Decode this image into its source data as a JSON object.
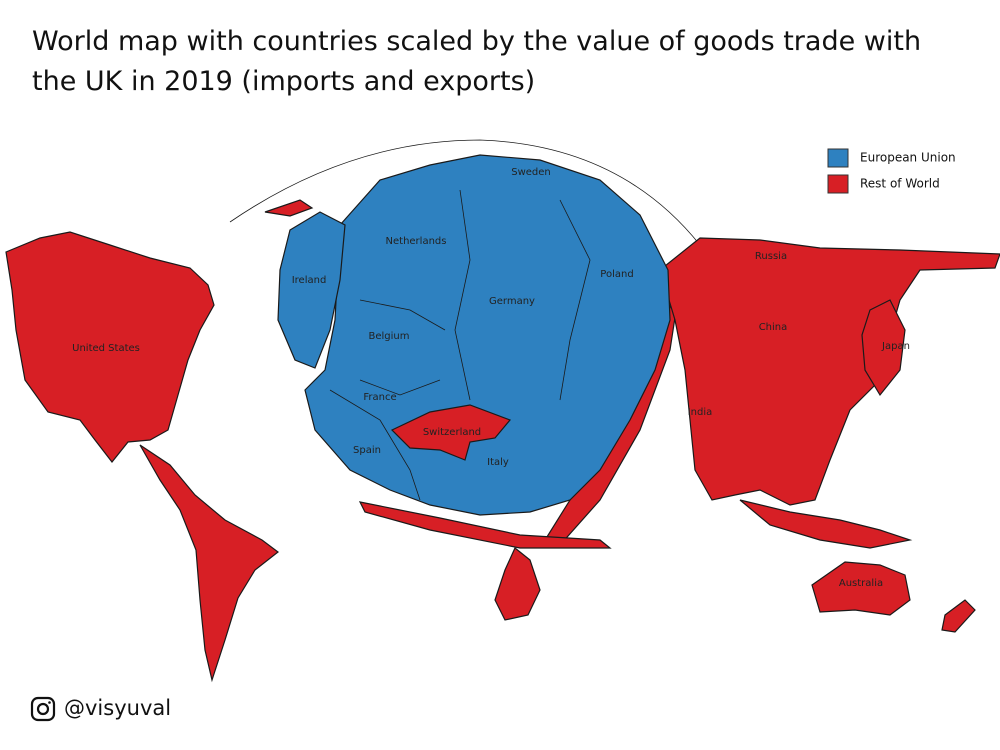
{
  "header": {
    "title_lines": [
      "World map with countries scaled by the value of goods trade with",
      "the UK in 2019 (imports and exports)"
    ]
  },
  "legend": [
    {
      "label": "European Union"
    },
    {
      "label": "Rest of World"
    }
  ],
  "labels": [
    "Sweden",
    "Netherlands",
    "Ireland",
    "Poland",
    "Germany",
    "Belgium",
    "France",
    "Switzerland",
    "Spain",
    "Italy",
    "Russia",
    "China",
    "Japan",
    "India",
    "United States",
    "Australia"
  ],
  "credit": "@visyuval"
}
